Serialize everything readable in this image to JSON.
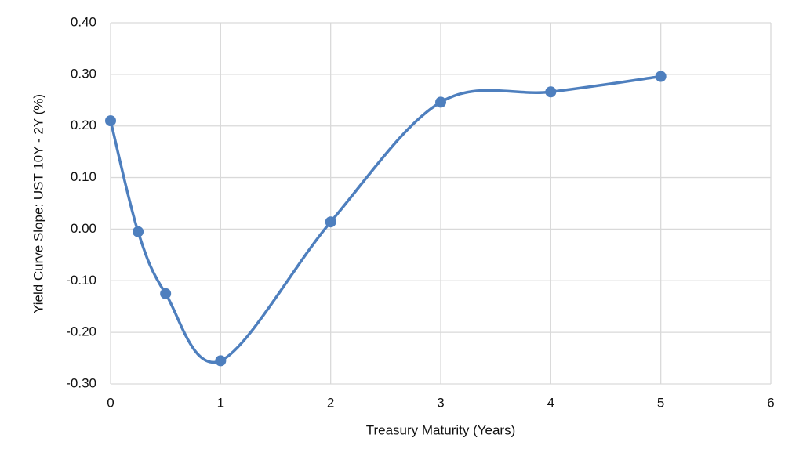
{
  "chart_data": {
    "type": "scatter",
    "x_label": "Treasury Maturity (Years)",
    "y_label": "Yield Curve Slope: UST 10Y - 2Y (%)",
    "x": [
      0,
      0.25,
      0.5,
      1,
      2,
      3,
      4,
      5
    ],
    "series": [
      {
        "color": "#4e7fbe",
        "values": [
          0.21,
          -0.005,
          -0.125,
          -0.255,
          0.014,
          0.246,
          0.266,
          0.296
        ]
      }
    ],
    "smooth": true,
    "xlim": [
      0,
      6
    ],
    "xticks": [
      0,
      1,
      2,
      3,
      4,
      5,
      6
    ],
    "ylim": [
      -0.3,
      0.4
    ],
    "yticks": [
      {
        "value": -0.3,
        "label": "-0.30"
      },
      {
        "value": -0.2,
        "label": "-0.20"
      },
      {
        "value": -0.1,
        "label": "-0.10"
      },
      {
        "value": 0,
        "label": "0.00"
      },
      {
        "value": 0.1,
        "label": "0.10"
      },
      {
        "value": 0.2,
        "label": "0.20"
      },
      {
        "value": 0.3,
        "label": "0.30"
      },
      {
        "value": 0.4,
        "label": "0.40"
      }
    ],
    "grid": true
  }
}
